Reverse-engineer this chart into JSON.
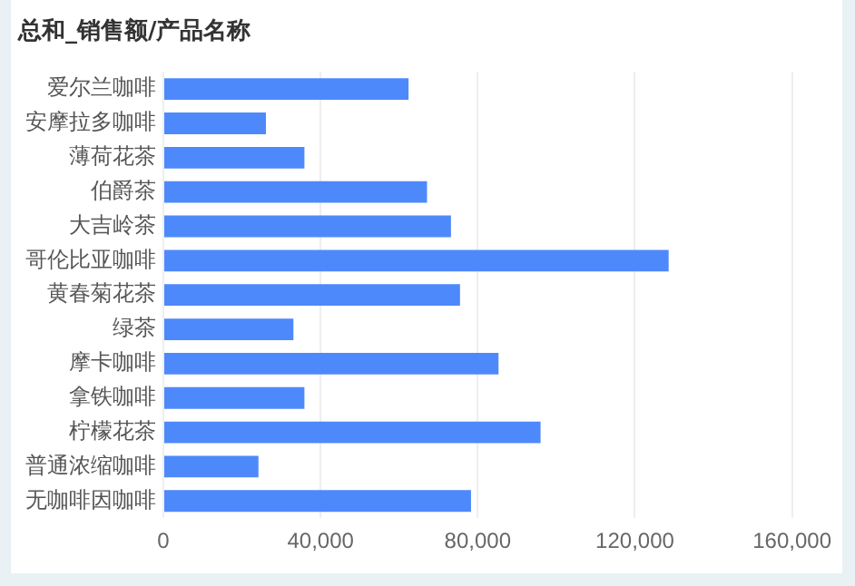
{
  "chart_data": {
    "type": "bar",
    "orientation": "horizontal",
    "title": "总和_销售额/产品名称",
    "categories": [
      "爱尔兰咖啡",
      "安摩拉多咖啡",
      "薄荷花茶",
      "伯爵茶",
      "大吉岭茶",
      "哥伦比亚咖啡",
      "黄春菊花茶",
      "绿茶",
      "摩卡咖啡",
      "拿铁咖啡",
      "柠檬花茶",
      "普通浓缩咖啡",
      "无咖啡因咖啡"
    ],
    "values": [
      62400,
      26100,
      35900,
      67100,
      73200,
      128600,
      75500,
      33100,
      85300,
      35900,
      96000,
      24200,
      78300
    ],
    "color": "#4e89fc",
    "xlim": [
      0,
      160000
    ],
    "xticks": [
      0,
      {
        "value": 40000,
        "label": "40,000"
      },
      {
        "value": 80000,
        "label": "80,000"
      },
      {
        "value": 120000,
        "label": "120,000"
      },
      {
        "value": 160000,
        "label": "160,000"
      }
    ],
    "grid": "x"
  }
}
